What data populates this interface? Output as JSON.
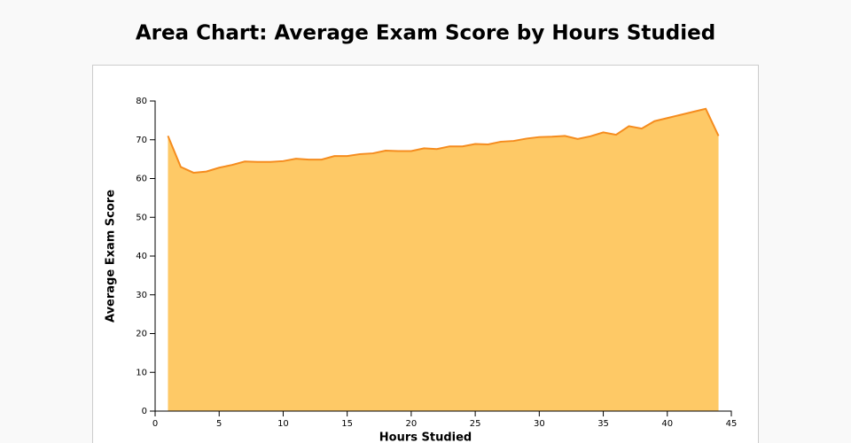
{
  "chart_data": {
    "type": "area",
    "title": "Area Chart: Average Exam Score by Hours Studied",
    "x_label": "Hours Studied",
    "y_label": "Average Exam Score",
    "x": [
      1,
      2,
      3,
      4,
      5,
      6,
      7,
      8,
      9,
      10,
      11,
      12,
      13,
      14,
      15,
      16,
      17,
      18,
      19,
      20,
      21,
      22,
      23,
      24,
      25,
      26,
      27,
      28,
      29,
      30,
      31,
      32,
      33,
      34,
      35,
      36,
      37,
      38,
      39,
      40,
      41,
      42,
      43,
      44
    ],
    "values": [
      71,
      63,
      61.5,
      61.8,
      62.8,
      63.5,
      64.4,
      64.3,
      64.3,
      64.5,
      65.1,
      64.9,
      64.9,
      65.8,
      65.8,
      66.3,
      66.5,
      67.2,
      67.1,
      67.1,
      67.8,
      67.6,
      68.3,
      68.3,
      68.9,
      68.8,
      69.5,
      69.7,
      70.3,
      70.7,
      70.8,
      71.0,
      70.2,
      70.9,
      71.9,
      71.3,
      73.5,
      72.9,
      74.8,
      75.6,
      76.4,
      77.2,
      78.0,
      71.0
    ],
    "fill_color": "#fec966",
    "line_color": "#f58c1e",
    "xlim": [
      0,
      45
    ],
    "xticks": [
      0,
      5,
      10,
      15,
      20,
      25,
      30,
      35,
      40,
      45
    ],
    "ylim": [
      0,
      80
    ],
    "yticks": [
      0,
      10,
      20,
      30,
      40,
      50,
      60,
      70,
      80
    ],
    "grid": false
  }
}
